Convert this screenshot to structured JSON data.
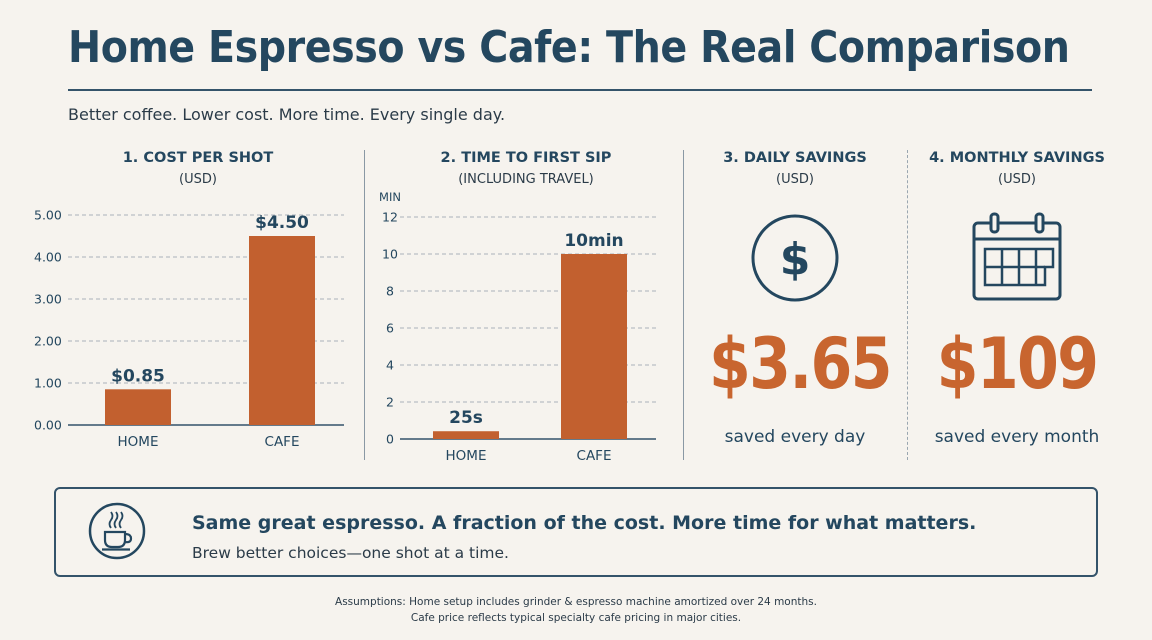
{
  "header": {
    "title": "Home Espresso vs Cafe: The Real Comparison",
    "subtitle": "Better coffee. Lower cost. More time. Every single day."
  },
  "panels": {
    "cost": {
      "heading": "1. COST PER SHOT",
      "sub": "(USD)"
    },
    "time": {
      "heading": "2. TIME TO FIRST SIP",
      "sub": "(INCLUDING TRAVEL)"
    },
    "daily": {
      "heading": "3. DAILY SAVINGS",
      "sub": "(USD)",
      "value": "$3.65",
      "caption": "saved every day",
      "icon": "dollar-circle-icon"
    },
    "monthly": {
      "heading": "4. MONTHLY SAVINGS",
      "sub": "(USD)",
      "value": "$109",
      "caption": "saved every month",
      "icon": "calendar-icon"
    }
  },
  "chart_data": [
    {
      "type": "bar",
      "title": "1. COST PER SHOT",
      "subtitle": "(USD)",
      "categories": [
        "HOME",
        "CAFE"
      ],
      "values": [
        0.85,
        4.5
      ],
      "data_labels": [
        "$0.85",
        "$4.50"
      ],
      "ylim": [
        0,
        5
      ],
      "yticks": [
        0,
        1,
        2,
        3,
        4,
        5
      ],
      "ytick_labels": [
        "0.00",
        "1.00",
        "2.00",
        "3.00",
        "4.00",
        "5.00"
      ],
      "grid": true
    },
    {
      "type": "bar",
      "title": "2. TIME TO FIRST SIP",
      "subtitle": "(INCLUDING TRAVEL)",
      "ylabel": "MIN",
      "categories": [
        "HOME",
        "CAFE"
      ],
      "values": [
        0.42,
        10
      ],
      "data_labels": [
        "25s",
        "10min"
      ],
      "ylim": [
        0,
        12
      ],
      "yticks": [
        0,
        2,
        4,
        6,
        8,
        10,
        12
      ],
      "ytick_labels": [
        "0",
        "2",
        "4",
        "6",
        "8",
        "10",
        "12"
      ],
      "grid": true
    }
  ],
  "banner": {
    "headline": "Same great espresso. A fraction of the cost. More time for what matters.",
    "tagline": "Brew better choices—one shot at a time.",
    "icon": "coffee-cup-icon"
  },
  "footnote": {
    "line1": "Assumptions:  Home setup includes grinder & espresso machine amortized over 24 months.",
    "line2": "Cafe price reflects typical specialty cafe pricing in major cities."
  },
  "colors": {
    "bar": "#c2602f",
    "accent": "#c8652f",
    "navy": "#24475f",
    "background": "#f6f3ee"
  }
}
